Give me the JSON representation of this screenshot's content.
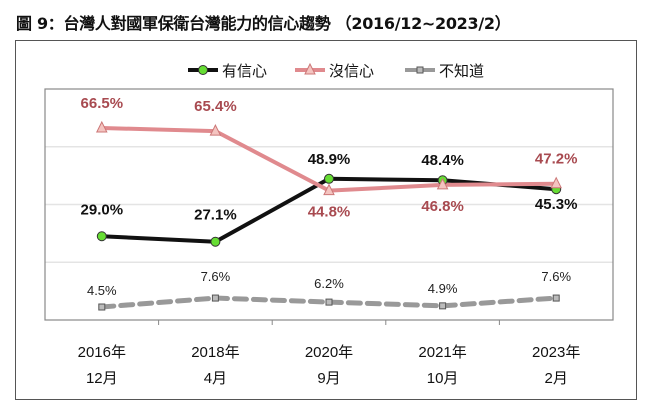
{
  "chart_data": {
    "type": "line",
    "title": "圖 9：台灣人對國軍保衛台灣能力的信心趨勢 （2016/12~2023/2）",
    "categories": [
      [
        "2016年",
        "12月"
      ],
      [
        "2018年",
        "4月"
      ],
      [
        "2020年",
        "9月"
      ],
      [
        "2021年",
        "10月"
      ],
      [
        "2023年",
        "2月"
      ]
    ],
    "ylim": [
      0,
      80
    ],
    "grid": true,
    "legend_position": "top",
    "series": [
      {
        "name": "有信心",
        "values": [
          29.0,
          27.1,
          48.9,
          48.4,
          45.3
        ],
        "labels": [
          "29.0%",
          "27.1%",
          "48.9%",
          "48.4%",
          "45.3%"
        ],
        "color": "#111111",
        "marker": "circle",
        "marker_color": "#66dd33",
        "label_color": "#111111",
        "dashed": false
      },
      {
        "name": "沒信心",
        "values": [
          66.5,
          65.4,
          44.8,
          46.8,
          47.2
        ],
        "labels": [
          "66.5%",
          "65.4%",
          "44.8%",
          "46.8%",
          "47.2%"
        ],
        "color": "#e08a8e",
        "marker": "triangle",
        "marker_color": "#f4c4c0",
        "label_color": "#a84a50",
        "dashed": false
      },
      {
        "name": "不知道",
        "values": [
          4.5,
          7.6,
          6.2,
          4.9,
          7.6
        ],
        "labels": [
          "4.5%",
          "7.6%",
          "6.2%",
          "4.9%",
          "7.6%"
        ],
        "color": "#999999",
        "marker": "square",
        "marker_color": "#bbbbbb",
        "label_color": "#222222",
        "dashed": true
      }
    ]
  }
}
